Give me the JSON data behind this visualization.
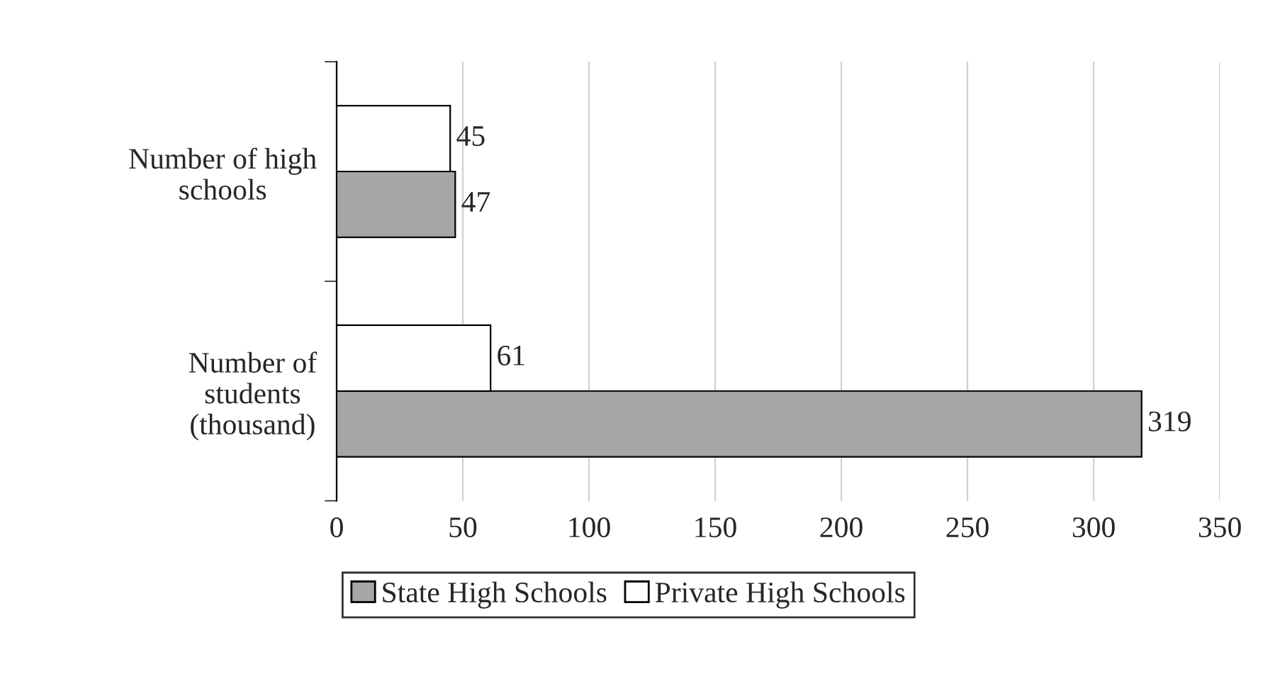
{
  "chart_data": {
    "type": "bar",
    "orientation": "horizontal",
    "categories": [
      "Number of high\nschools",
      "Number of\nstudents\n(thousand)"
    ],
    "series": [
      {
        "name": "State High Schools",
        "color": "#a6a6a6",
        "values": [
          47,
          319
        ]
      },
      {
        "name": "Private High Schools",
        "color": "#ffffff",
        "values": [
          45,
          61
        ]
      }
    ],
    "xlim": [
      0,
      350
    ],
    "xticks": [
      0,
      50,
      100,
      150,
      200,
      250,
      300,
      350
    ],
    "grid": "x",
    "legend": "bottom",
    "data_labels": true
  }
}
